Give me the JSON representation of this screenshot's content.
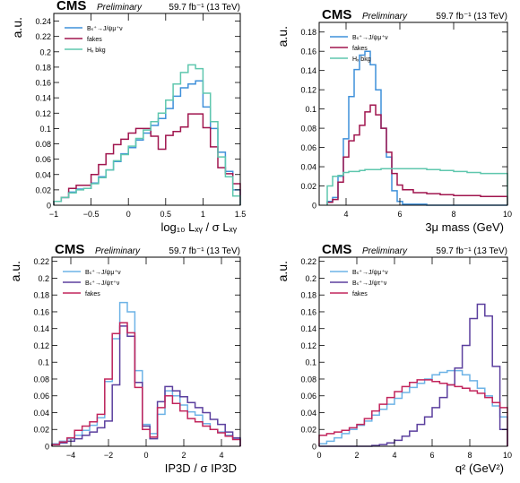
{
  "chart_data": [
    {
      "type": "line",
      "header": {
        "experiment": "CMS",
        "status": "Preliminary",
        "lumi": "59.7 fb⁻¹ (13 TeV)"
      },
      "ylabel": "a.u.",
      "xlabel": "log₁₀ Lₓᵧ / σ Lₓᵧ",
      "xlim": [
        -1,
        1.5
      ],
      "ylim": [
        0,
        0.25
      ],
      "xticks": [
        -1,
        -0.5,
        0,
        0.5,
        1,
        1.5
      ],
      "xtick_labels": [
        "−1",
        "−0.5",
        "0",
        "0.5",
        "1",
        "1.5"
      ],
      "yticks": [
        0.02,
        0.04,
        0.06,
        0.08,
        0.1,
        0.12,
        0.14,
        0.16,
        0.18,
        0.2,
        0.22,
        0.24
      ],
      "ytick_labels": [
        "0.02",
        "0.04",
        "0.06",
        "0.08",
        "0.1",
        "0.12",
        "0.14",
        "0.16",
        "0.18",
        "0.2",
        "0.22",
        "0.24"
      ],
      "bin_edges": [
        -1,
        -0.9,
        -0.8,
        -0.7,
        -0.6,
        -0.5,
        -0.4,
        -0.3,
        -0.2,
        -0.1,
        0,
        0.1,
        0.2,
        0.3,
        0.4,
        0.5,
        0.6,
        0.7,
        0.8,
        0.9,
        1.0,
        1.1,
        1.2,
        1.3,
        1.4,
        1.5
      ],
      "series": [
        {
          "name": "Bₛ⁺→J/ψμ⁺ν",
          "color": "#3f90da",
          "values": [
            0.005,
            0.01,
            0.017,
            0.021,
            0.022,
            0.029,
            0.037,
            0.046,
            0.057,
            0.067,
            0.075,
            0.085,
            0.094,
            0.104,
            0.113,
            0.126,
            0.142,
            0.153,
            0.158,
            0.162,
            0.128,
            0.1,
            0.069,
            0.044,
            0.02
          ]
        },
        {
          "name": "fakes",
          "color": "#a0154e",
          "values": [
            0.005,
            0.01,
            0.022,
            0.026,
            0.026,
            0.04,
            0.053,
            0.067,
            0.079,
            0.086,
            0.094,
            0.1,
            0.1,
            0.09,
            0.073,
            0.091,
            0.096,
            0.102,
            0.119,
            0.119,
            0.101,
            0.076,
            0.049,
            0.041,
            0.028
          ]
        },
        {
          "name": "Hₓ bkg",
          "color": "#5fc7ae",
          "values": [
            0.005,
            0.01,
            0.016,
            0.02,
            0.022,
            0.028,
            0.036,
            0.046,
            0.058,
            0.066,
            0.077,
            0.087,
            0.098,
            0.109,
            0.12,
            0.137,
            0.158,
            0.173,
            0.183,
            0.178,
            0.146,
            0.109,
            0.063,
            0.037,
            0.012
          ]
        }
      ]
    },
    {
      "type": "line",
      "header": {
        "experiment": "CMS",
        "status": "Preliminary",
        "lumi": "59.7 fb⁻¹ (13 TeV)"
      },
      "ylabel": "a.u.",
      "xlabel": "3μ mass (GeV)",
      "xlim": [
        3,
        10
      ],
      "ylim": [
        0,
        0.19
      ],
      "xticks": [
        4,
        6,
        8,
        10
      ],
      "xtick_labels": [
        "4",
        "6",
        "8",
        "10"
      ],
      "yticks": [
        0.02,
        0.04,
        0.06,
        0.08,
        0.1,
        0.12,
        0.14,
        0.16,
        0.18
      ],
      "ytick_labels": [
        "0.02",
        "0.04",
        "0.06",
        "0.08",
        "0.1",
        "0.12",
        "0.14",
        "0.16",
        "0.18"
      ],
      "bin_edges": [
        3.3,
        3.5,
        3.7,
        3.9,
        4.1,
        4.3,
        4.5,
        4.7,
        4.9,
        5.1,
        5.3,
        5.5,
        5.7,
        5.9,
        6.1,
        6.5,
        7,
        7.5,
        8,
        8.5,
        9,
        9.5,
        10
      ],
      "series": [
        {
          "name": "Bₛ⁺→J/ψμ⁺ν",
          "color": "#3f90da",
          "values": [
            0.004,
            0.008,
            0.03,
            0.069,
            0.113,
            0.141,
            0.156,
            0.16,
            0.146,
            0.12,
            0.08,
            0.05,
            0.015,
            0.004,
            0.001,
            0.001,
            0,
            0,
            0,
            0,
            0,
            0
          ]
        },
        {
          "name": "fakes",
          "color": "#a0154e",
          "values": [
            0.003,
            0.006,
            0.024,
            0.05,
            0.067,
            0.073,
            0.083,
            0.097,
            0.104,
            0.094,
            0.08,
            0.055,
            0.033,
            0.021,
            0.016,
            0.013,
            0.012,
            0.011,
            0.01,
            0.01,
            0.009,
            0.009
          ]
        },
        {
          "name": "Hₓ bkg",
          "color": "#5fc7ae",
          "values": [
            0.02,
            0.03,
            0.031,
            0.034,
            0.035,
            0.035,
            0.036,
            0.037,
            0.037,
            0.037,
            0.038,
            0.038,
            0.038,
            0.038,
            0.038,
            0.038,
            0.037,
            0.036,
            0.035,
            0.034,
            0.033,
            0.033
          ]
        }
      ]
    },
    {
      "type": "line",
      "header": {
        "experiment": "CMS",
        "status": "Preliminary",
        "lumi": "59.7 fb⁻¹ (13 TeV)"
      },
      "ylabel": "a.u.",
      "xlabel": "IP3D / σ IP3D",
      "xlim": [
        -5,
        5
      ],
      "ylim": [
        0,
        0.225
      ],
      "xticks": [
        -4,
        -2,
        0,
        2,
        4
      ],
      "xtick_labels": [
        "−4",
        "−2",
        "0",
        "2",
        "4"
      ],
      "yticks": [
        0.02,
        0.04,
        0.06,
        0.08,
        0.1,
        0.12,
        0.14,
        0.16,
        0.18,
        0.2,
        0.22
      ],
      "ytick_labels": [
        "0.02",
        "0.04",
        "0.06",
        "0.08",
        "0.1",
        "0.12",
        "0.14",
        "0.16",
        "0.18",
        "0.2",
        "0.22"
      ],
      "bin_edges": [
        -5,
        -4.6,
        -4.2,
        -3.8,
        -3.4,
        -3,
        -2.6,
        -2.2,
        -1.8,
        -1.4,
        -1,
        -0.6,
        -0.2,
        0.2,
        0.6,
        1,
        1.4,
        1.8,
        2.2,
        2.6,
        3,
        3.4,
        3.8,
        4.2,
        4.6,
        5
      ],
      "series": [
        {
          "name": "Bₛ⁺→J/ψμ⁺ν",
          "color": "#6db3e6",
          "values": [
            0.003,
            0.006,
            0.009,
            0.013,
            0.019,
            0.025,
            0.034,
            0.077,
            0.128,
            0.171,
            0.16,
            0.09,
            0.026,
            0.015,
            0.038,
            0.066,
            0.06,
            0.049,
            0.041,
            0.037,
            0.027,
            0.02,
            0.017,
            0.013,
            0.009
          ]
        },
        {
          "name": "Bₛ⁺→J/ψτ⁺ν",
          "color": "#5b3f9e",
          "values": [
            0.002,
            0.004,
            0.006,
            0.009,
            0.013,
            0.017,
            0.022,
            0.03,
            0.073,
            0.143,
            0.131,
            0.076,
            0.024,
            0.009,
            0.053,
            0.071,
            0.066,
            0.059,
            0.052,
            0.046,
            0.04,
            0.032,
            0.026,
            0.017,
            0.01
          ]
        },
        {
          "name": "fakes",
          "color": "#c2255c",
          "values": [
            0.002,
            0.005,
            0.01,
            0.019,
            0.024,
            0.029,
            0.038,
            0.08,
            0.134,
            0.147,
            0.135,
            0.07,
            0.02,
            0.011,
            0.046,
            0.06,
            0.051,
            0.042,
            0.033,
            0.029,
            0.024,
            0.02,
            0.016,
            0.012,
            0.008
          ]
        }
      ]
    },
    {
      "type": "line",
      "header": {
        "experiment": "CMS",
        "status": "Preliminary",
        "lumi": "59.7 fb⁻¹ (13 TeV)"
      },
      "ylabel": "a.u.",
      "xlabel": "q² (GeV²)",
      "xlim": [
        0,
        10
      ],
      "ylim": [
        0,
        0.225
      ],
      "xticks": [
        0,
        2,
        4,
        6,
        8,
        10
      ],
      "xtick_labels": [
        "0",
        "2",
        "4",
        "6",
        "8",
        "10"
      ],
      "yticks": [
        0.02,
        0.04,
        0.06,
        0.08,
        0.1,
        0.12,
        0.14,
        0.16,
        0.18,
        0.2,
        0.22
      ],
      "ytick_labels": [
        "0.02",
        "0.04",
        "0.06",
        "0.08",
        "0.1",
        "0.12",
        "0.14",
        "0.16",
        "0.18",
        "0.2",
        "0.22"
      ],
      "bin_edges": [
        0,
        0.4,
        0.8,
        1.2,
        1.6,
        2,
        2.4,
        2.8,
        3.2,
        3.6,
        4,
        4.4,
        4.8,
        5.2,
        5.6,
        6,
        6.4,
        6.8,
        7.2,
        7.6,
        8,
        8.4,
        8.8,
        9.2,
        9.6,
        10
      ],
      "series": [
        {
          "name": "Bₛ⁺→J/ψμ⁺ν",
          "color": "#6db3e6",
          "values": [
            0.003,
            0.006,
            0.01,
            0.015,
            0.02,
            0.025,
            0.03,
            0.037,
            0.044,
            0.05,
            0.057,
            0.064,
            0.07,
            0.075,
            0.08,
            0.085,
            0.088,
            0.09,
            0.09,
            0.085,
            0.078,
            0.069,
            0.06,
            0.048,
            0.035
          ]
        },
        {
          "name": "Bₛ⁺→J/ψτ⁺ν",
          "color": "#5b3f9e",
          "values": [
            0,
            0,
            0,
            0,
            0,
            0,
            0,
            0.001,
            0.002,
            0.004,
            0.007,
            0.012,
            0.018,
            0.026,
            0.035,
            0.046,
            0.058,
            0.073,
            0.093,
            0.12,
            0.152,
            0.169,
            0.155,
            0.095,
            0.02
          ]
        },
        {
          "name": "fakes",
          "color": "#c2255c",
          "values": [
            0.013,
            0.015,
            0.017,
            0.019,
            0.022,
            0.026,
            0.033,
            0.042,
            0.05,
            0.058,
            0.065,
            0.071,
            0.076,
            0.079,
            0.079,
            0.077,
            0.075,
            0.073,
            0.071,
            0.069,
            0.066,
            0.063,
            0.058,
            0.052,
            0.046
          ]
        }
      ]
    }
  ]
}
